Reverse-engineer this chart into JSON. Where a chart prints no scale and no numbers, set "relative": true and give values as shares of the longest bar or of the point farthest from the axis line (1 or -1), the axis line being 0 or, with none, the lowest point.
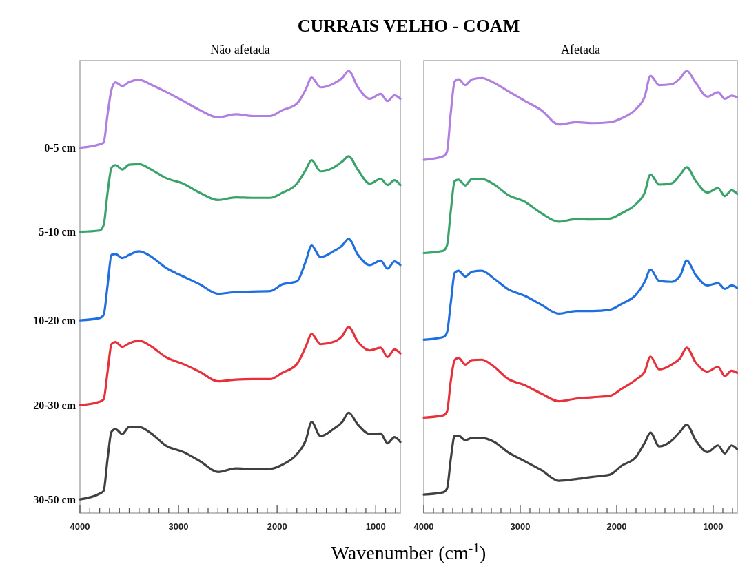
{
  "chart_data": [
    {
      "type": "line",
      "relative": true,
      "title": "CURRAIS VELHO - COAM",
      "subtitle": "Não afetada",
      "xlabel": "Wavenumber (cm$^{-1}$)",
      "tick_labels": "x",
      "xlim": [
        4000,
        750
      ],
      "xticks": [
        4000,
        {
          "value": 3900,
          "label": null
        },
        {
          "value": 3800,
          "label": null
        },
        {
          "value": 3700,
          "label": null
        },
        {
          "value": 3600,
          "label": null
        },
        {
          "value": 3500,
          "label": null
        },
        {
          "value": 3400,
          "label": null
        },
        {
          "value": 3300,
          "label": null
        },
        {
          "value": 3200,
          "label": null
        },
        {
          "value": 3100,
          "label": null
        },
        3000,
        {
          "value": 2900,
          "label": null
        },
        {
          "value": 2800,
          "label": null
        },
        {
          "value": 2700,
          "label": null
        },
        {
          "value": 2600,
          "label": null
        },
        {
          "value": 2500,
          "label": null
        },
        {
          "value": 2400,
          "label": null
        },
        {
          "value": 2300,
          "label": null
        },
        {
          "value": 2200,
          "label": null
        },
        {
          "value": 2100,
          "label": null
        },
        2000,
        {
          "value": 1900,
          "label": null
        },
        {
          "value": 1800,
          "label": null
        },
        {
          "value": 1700,
          "label": null
        },
        {
          "value": 1600,
          "label": null
        },
        {
          "value": 1500,
          "label": null
        },
        {
          "value": 1400,
          "label": null
        },
        {
          "value": 1300,
          "label": null
        },
        {
          "value": 1200,
          "label": null
        },
        {
          "value": 1100,
          "label": null
        },
        1000,
        {
          "value": 900,
          "label": null
        },
        {
          "value": 800,
          "label": null
        }
      ],
      "x": [
        4000,
        3800,
        3760,
        3720,
        3680,
        3640,
        3570,
        3500,
        3400,
        3270,
        3130,
        2950,
        2780,
        2600,
        2420,
        2250,
        2070,
        1950,
        1800,
        1710,
        1650,
        1560,
        1430,
        1340,
        1275,
        1180,
        1060,
        950,
        880,
        810,
        750
      ],
      "series": [
        {
          "name": "0-5 cm",
          "color": "#b07fe0",
          "values": [
            0.826,
            0.834,
            0.838,
            0.901,
            0.958,
            0.974,
            0.966,
            0.975,
            0.98,
            0.968,
            0.953,
            0.932,
            0.911,
            0.895,
            0.902,
            0.898,
            0.898,
            0.911,
            0.926,
            0.958,
            0.985,
            0.963,
            0.971,
            0.984,
            1.0,
            0.963,
            0.937,
            0.948,
            0.932,
            0.945,
            0.937
          ]
        },
        {
          "name": "5-10 cm",
          "color": "#3aa36a",
          "values": [
            0.636,
            0.639,
            0.651,
            0.724,
            0.781,
            0.787,
            0.777,
            0.788,
            0.789,
            0.776,
            0.758,
            0.745,
            0.724,
            0.708,
            0.714,
            0.713,
            0.713,
            0.724,
            0.745,
            0.776,
            0.798,
            0.773,
            0.781,
            0.795,
            0.807,
            0.776,
            0.745,
            0.756,
            0.742,
            0.753,
            0.742
          ]
        },
        {
          "name": "10-20 cm",
          "color": "#1f6fe0",
          "values": [
            0.436,
            0.441,
            0.448,
            0.514,
            0.584,
            0.586,
            0.577,
            0.584,
            0.592,
            0.579,
            0.555,
            0.535,
            0.517,
            0.496,
            0.5,
            0.501,
            0.502,
            0.517,
            0.524,
            0.569,
            0.605,
            0.579,
            0.592,
            0.605,
            0.62,
            0.584,
            0.561,
            0.571,
            0.553,
            0.569,
            0.561
          ]
        },
        {
          "name": "20-30 cm",
          "color": "#e8303a",
          "values": [
            0.244,
            0.252,
            0.257,
            0.319,
            0.382,
            0.387,
            0.376,
            0.384,
            0.39,
            0.376,
            0.353,
            0.337,
            0.319,
            0.298,
            0.302,
            0.303,
            0.303,
            0.317,
            0.337,
            0.376,
            0.405,
            0.382,
            0.387,
            0.4,
            0.421,
            0.387,
            0.368,
            0.374,
            0.353,
            0.37,
            0.361
          ]
        },
        {
          "name": "30-50 cm",
          "color": "#404040",
          "values": [
            0.031,
            0.044,
            0.05,
            0.122,
            0.184,
            0.19,
            0.179,
            0.195,
            0.195,
            0.179,
            0.153,
            0.138,
            0.117,
            0.093,
            0.101,
            0.1,
            0.1,
            0.109,
            0.133,
            0.164,
            0.206,
            0.174,
            0.19,
            0.206,
            0.227,
            0.2,
            0.179,
            0.18,
            0.158,
            0.172,
            0.161
          ]
        }
      ]
    },
    {
      "type": "line",
      "relative": true,
      "subtitle": "Afetada",
      "tick_labels": "x",
      "xlim": [
        4000,
        750
      ],
      "xticks": [
        4000,
        {
          "value": 3900,
          "label": null
        },
        {
          "value": 3800,
          "label": null
        },
        {
          "value": 3700,
          "label": null
        },
        {
          "value": 3600,
          "label": null
        },
        {
          "value": 3500,
          "label": null
        },
        {
          "value": 3400,
          "label": null
        },
        {
          "value": 3300,
          "label": null
        },
        {
          "value": 3200,
          "label": null
        },
        {
          "value": 3100,
          "label": null
        },
        3000,
        {
          "value": 2900,
          "label": null
        },
        {
          "value": 2800,
          "label": null
        },
        {
          "value": 2700,
          "label": null
        },
        {
          "value": 2600,
          "label": null
        },
        {
          "value": 2500,
          "label": null
        },
        {
          "value": 2400,
          "label": null
        },
        {
          "value": 2300,
          "label": null
        },
        {
          "value": 2200,
          "label": null
        },
        {
          "value": 2100,
          "label": null
        },
        2000,
        {
          "value": 1900,
          "label": null
        },
        {
          "value": 1800,
          "label": null
        },
        {
          "value": 1700,
          "label": null
        },
        {
          "value": 1600,
          "label": null
        },
        {
          "value": 1500,
          "label": null
        },
        {
          "value": 1400,
          "label": null
        },
        {
          "value": 1300,
          "label": null
        },
        {
          "value": 1200,
          "label": null
        },
        {
          "value": 1100,
          "label": null
        },
        1000,
        {
          "value": 900,
          "label": null
        },
        {
          "value": 800,
          "label": null
        }
      ],
      "x": [
        4000,
        3800,
        3760,
        3720,
        3680,
        3640,
        3570,
        3500,
        3400,
        3270,
        3130,
        2950,
        2780,
        2600,
        2420,
        2250,
        2070,
        1950,
        1800,
        1710,
        1650,
        1560,
        1430,
        1340,
        1275,
        1180,
        1060,
        950,
        880,
        810,
        750
      ],
      "series": [
        {
          "color": "#b07fe0",
          "values": [
            0.799,
            0.807,
            0.817,
            0.906,
            0.976,
            0.981,
            0.968,
            0.981,
            0.984,
            0.973,
            0.955,
            0.932,
            0.911,
            0.879,
            0.884,
            0.882,
            0.884,
            0.893,
            0.914,
            0.942,
            0.989,
            0.968,
            0.97,
            0.984,
            1.0,
            0.973,
            0.942,
            0.952,
            0.937,
            0.944,
            0.94
          ]
        },
        {
          "color": "#3aa36a",
          "values": [
            0.588,
            0.593,
            0.605,
            0.684,
            0.751,
            0.754,
            0.741,
            0.756,
            0.756,
            0.743,
            0.72,
            0.704,
            0.678,
            0.659,
            0.665,
            0.664,
            0.666,
            0.678,
            0.699,
            0.725,
            0.766,
            0.743,
            0.746,
            0.766,
            0.782,
            0.751,
            0.725,
            0.735,
            0.717,
            0.73,
            0.722
          ]
        },
        {
          "color": "#1f6fe0",
          "values": [
            0.392,
            0.398,
            0.408,
            0.476,
            0.543,
            0.548,
            0.535,
            0.546,
            0.548,
            0.53,
            0.507,
            0.491,
            0.471,
            0.451,
            0.457,
            0.457,
            0.46,
            0.473,
            0.494,
            0.523,
            0.551,
            0.525,
            0.523,
            0.538,
            0.571,
            0.538,
            0.515,
            0.52,
            0.507,
            0.515,
            0.509
          ]
        },
        {
          "color": "#e8303a",
          "values": [
            0.216,
            0.221,
            0.229,
            0.299,
            0.346,
            0.351,
            0.336,
            0.346,
            0.347,
            0.331,
            0.304,
            0.289,
            0.27,
            0.253,
            0.259,
            0.262,
            0.265,
            0.281,
            0.302,
            0.32,
            0.354,
            0.325,
            0.336,
            0.351,
            0.374,
            0.34,
            0.32,
            0.331,
            0.31,
            0.322,
            0.317
          ]
        },
        {
          "color": "#404040",
          "values": [
            0.042,
            0.047,
            0.055,
            0.123,
            0.175,
            0.175,
            0.165,
            0.17,
            0.17,
            0.161,
            0.138,
            0.117,
            0.097,
            0.073,
            0.077,
            0.082,
            0.087,
            0.107,
            0.127,
            0.159,
            0.182,
            0.151,
            0.164,
            0.185,
            0.2,
            0.164,
            0.138,
            0.153,
            0.135,
            0.153,
            0.144
          ]
        }
      ]
    }
  ]
}
